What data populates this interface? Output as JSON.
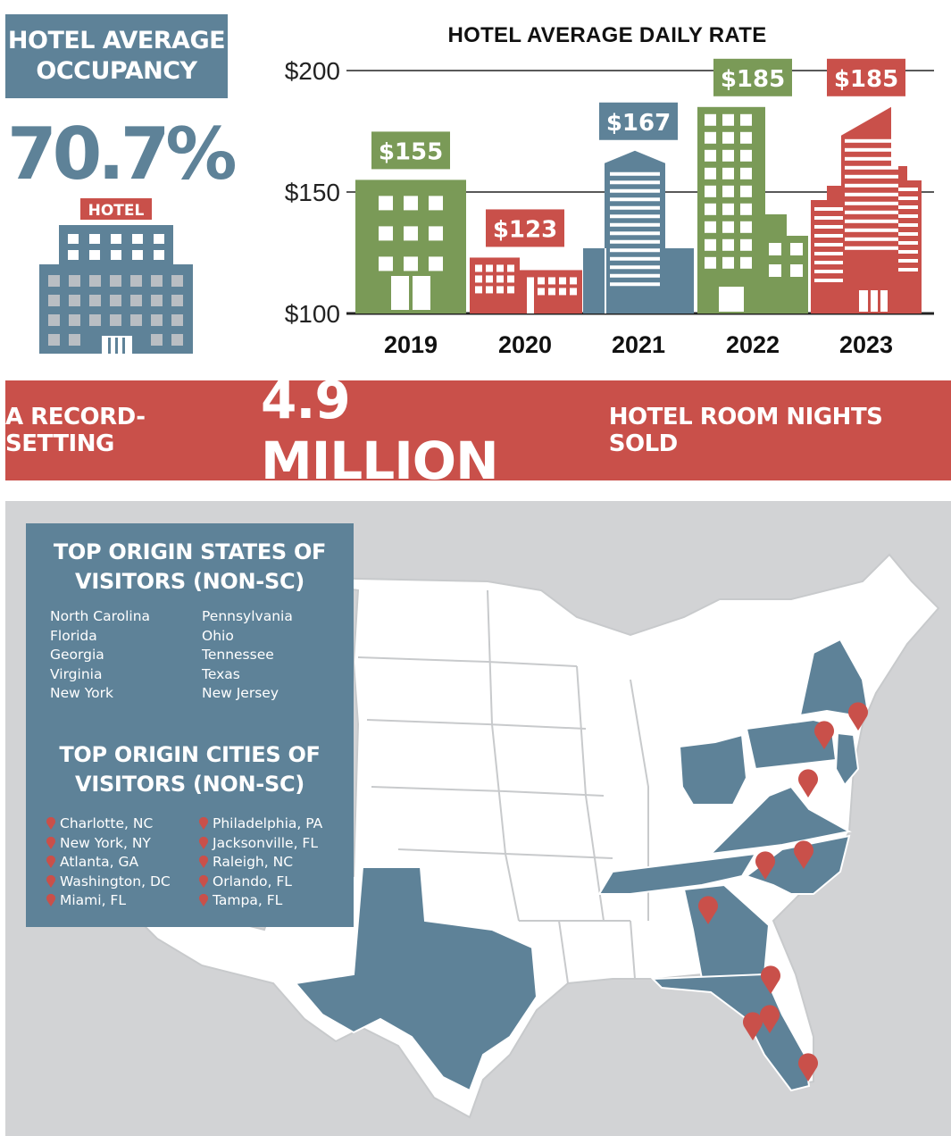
{
  "occupancy": {
    "title_line1": "HOTEL AVERAGE",
    "title_line2": "OCCUPANCY",
    "value": "70.7%",
    "icon_sign": "HOTEL",
    "icon": "hotel-building-icon"
  },
  "colors": {
    "blue": "#5e8298",
    "green": "#7a9a57",
    "red": "#c9504a",
    "map_land": "#ffffff",
    "map_background": "#d2d3d5"
  },
  "chart_data": {
    "type": "bar",
    "title": "HOTEL AVERAGE DAILY RATE",
    "categories": [
      "2019",
      "2020",
      "2021",
      "2022",
      "2023"
    ],
    "values": [
      155,
      123,
      167,
      185,
      185
    ],
    "value_labels": [
      "$155",
      "$123",
      "$167",
      "$185",
      "$185"
    ],
    "bar_colors": [
      "green",
      "red",
      "blue",
      "green",
      "red"
    ],
    "y_ticks": [
      "$100",
      "$150",
      "$200"
    ],
    "ylim": [
      100,
      200
    ],
    "grid": true
  },
  "banner": {
    "prefix": "A RECORD-SETTING",
    "highlight": "4.9 MILLION",
    "suffix": "HOTEL ROOM NIGHTS SOLD"
  },
  "origins": {
    "states_heading_line1": "TOP ORIGIN STATES OF",
    "states_heading_line2": "VISITORS (NON-SC)",
    "states_col1": [
      "North Carolina",
      "Florida",
      "Georgia",
      "Virginia",
      "New York"
    ],
    "states_col2": [
      "Pennsylvania",
      "Ohio",
      "Tennessee",
      "Texas",
      "New Jersey"
    ],
    "cities_heading_line1": "TOP ORIGIN CITIES OF",
    "cities_heading_line2": "VISITORS (NON-SC)",
    "cities_col1": [
      "Charlotte, NC",
      "New York, NY",
      "Atlanta, GA",
      "Washington, DC",
      "Miami, FL"
    ],
    "cities_col2": [
      "Philadelphia, PA",
      "Jacksonville, FL",
      "Raleigh, NC",
      "Orlando, FL",
      "Tampa, FL"
    ],
    "pin_icon": "map-pin-icon"
  }
}
